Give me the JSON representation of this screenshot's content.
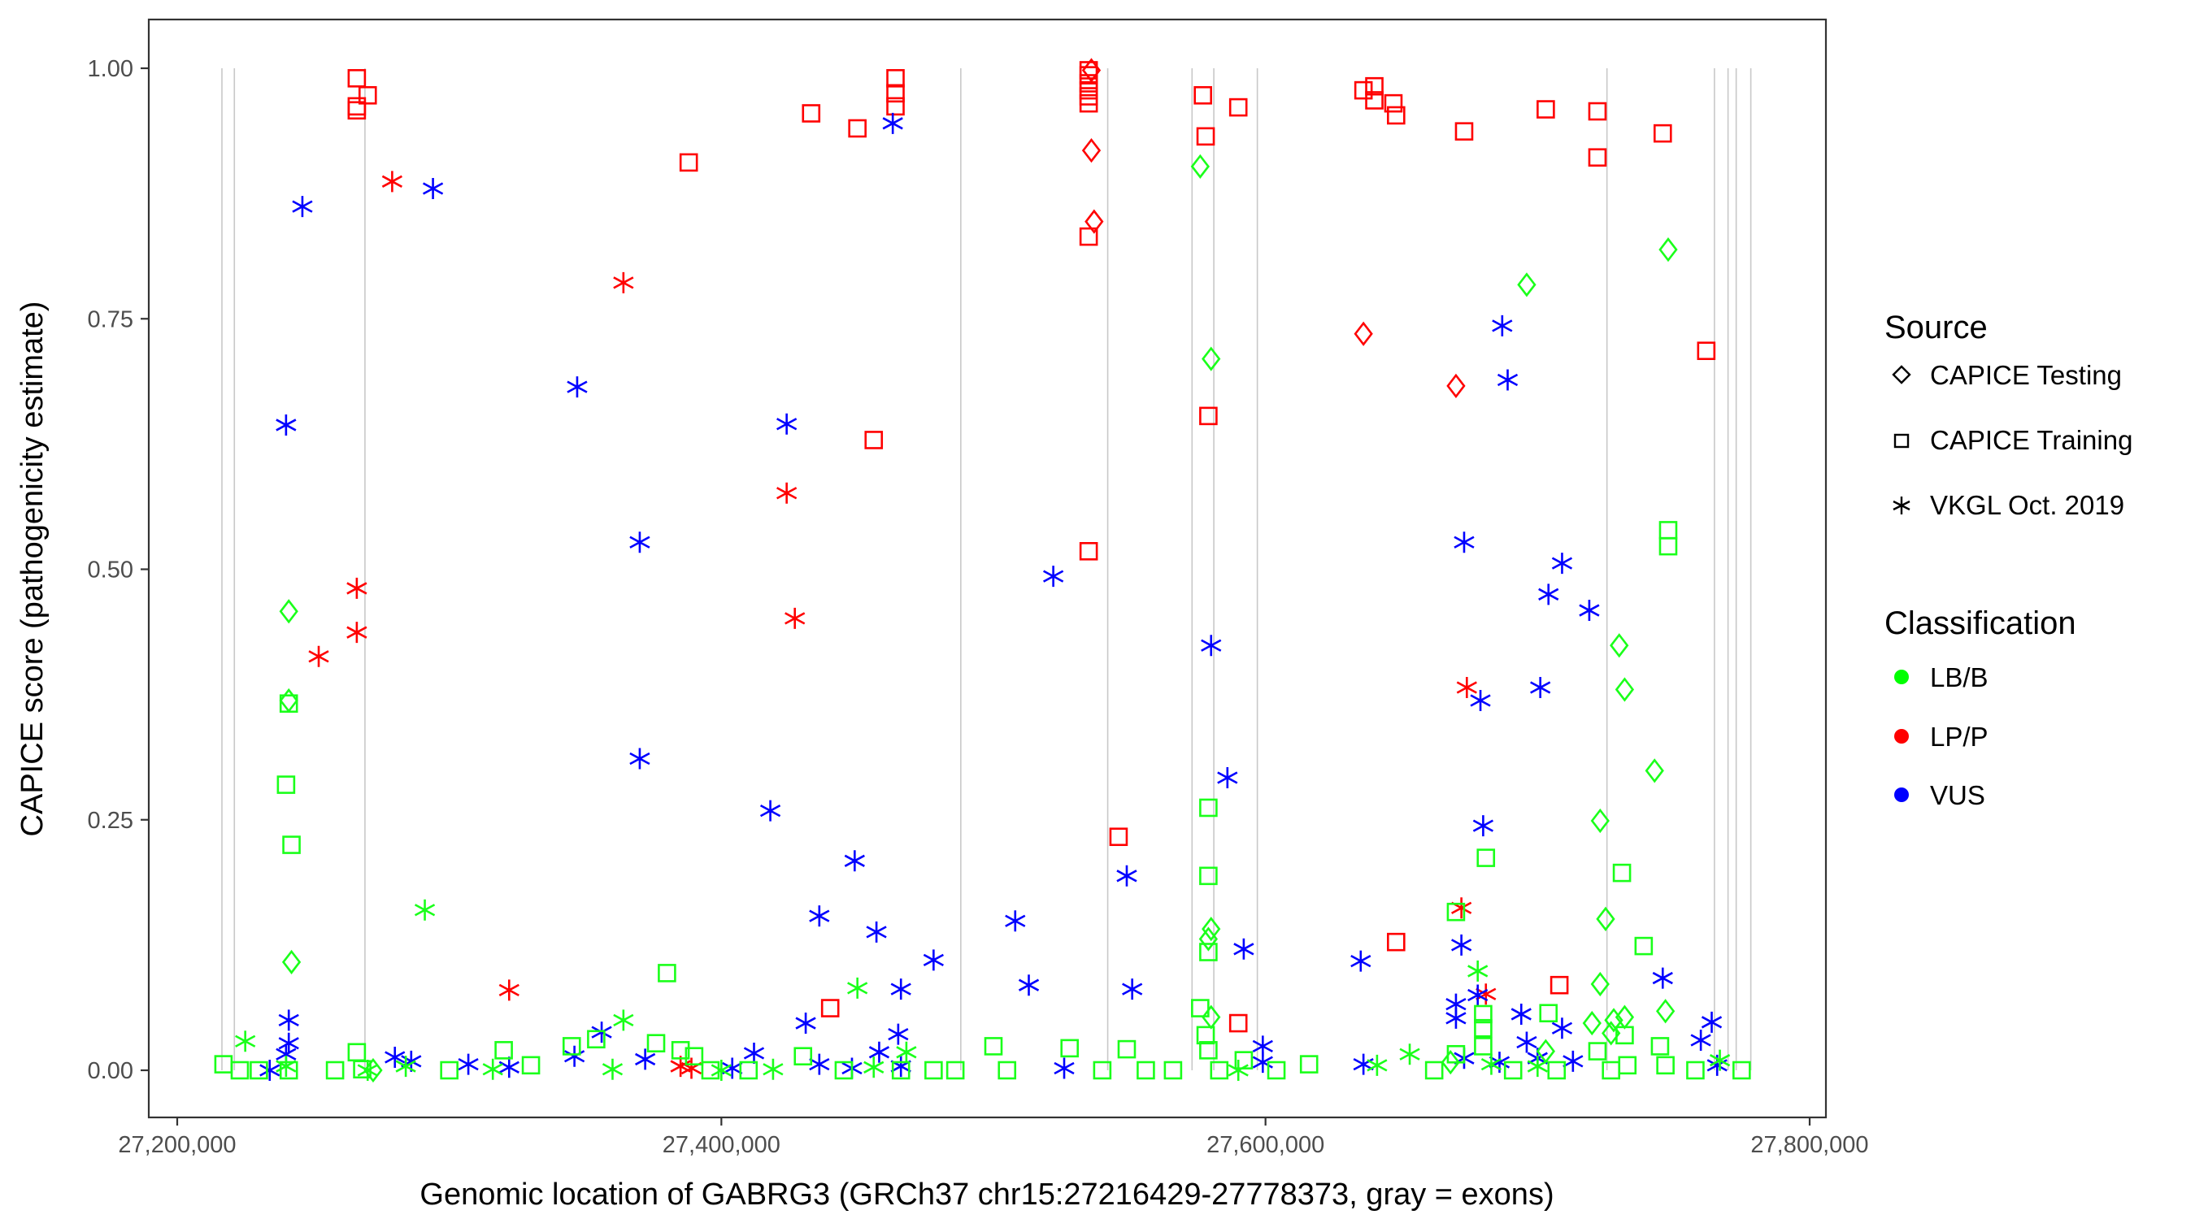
{
  "chart_data": {
    "type": "scatter",
    "xlabel": "Genomic location of GABRG3 (GRCh37 chr15:27216429-27778373, gray = exons)",
    "ylabel": "CAPICE score (pathogenicity estimate)",
    "xlim": [
      27188000,
      27803000
    ],
    "ylim": [
      -0.05,
      1.05
    ],
    "x_ticks": [
      27200000,
      27400000,
      27600000,
      27800000
    ],
    "x_tick_labels": [
      "27,200,000",
      "27,400,000",
      "27,600,000",
      "27,800,000"
    ],
    "y_ticks": [
      0,
      0.25,
      0.5,
      0.75,
      1.0
    ],
    "y_tick_labels": [
      "0.00",
      "0.25",
      "0.50",
      "0.75",
      "1.00"
    ],
    "grid": false,
    "exons": [
      27216429,
      27221000,
      27269000,
      27488000,
      27542000,
      27573000,
      27581000,
      27597000,
      27725500,
      27765000,
      27770000,
      27773000,
      27778373
    ],
    "legend": {
      "placement": "right",
      "source": {
        "title": "Source",
        "items": [
          {
            "label": "CAPICE Testing",
            "shape": "diamond"
          },
          {
            "label": "CAPICE Training",
            "shape": "square"
          },
          {
            "label": "VKGL Oct. 2019",
            "shape": "asterisk"
          }
        ]
      },
      "classification": {
        "title": "Classification",
        "items": [
          {
            "label": "LB/B",
            "color": "#00ff00"
          },
          {
            "label": "LP/P",
            "color": "#ff0000"
          },
          {
            "label": "VUS",
            "color": "#0000ff"
          }
        ]
      }
    },
    "colors": {
      "LB/B": "#1aff1a",
      "LP/P": "#ff0000",
      "VUS": "#0000ff"
    },
    "series": [
      {
        "name": "LP/P CAPICE Training",
        "classification": "LP/P",
        "source": "CAPICE Training",
        "points": [
          [
            27266000,
            0.99
          ],
          [
            27266000,
            0.962
          ],
          [
            27266000,
            0.958
          ],
          [
            27270000,
            0.973
          ],
          [
            27388000,
            0.906
          ],
          [
            27433000,
            0.955
          ],
          [
            27450000,
            0.94
          ],
          [
            27456000,
            0.629
          ],
          [
            27464000,
            0.99
          ],
          [
            27464000,
            0.975
          ],
          [
            27464000,
            0.962
          ],
          [
            27535000,
            0.998
          ],
          [
            27535000,
            0.993
          ],
          [
            27535000,
            0.985
          ],
          [
            27535000,
            0.978
          ],
          [
            27535000,
            0.972
          ],
          [
            27535000,
            0.965
          ],
          [
            27535000,
            0.832
          ],
          [
            27535000,
            0.518
          ],
          [
            27546000,
            0.233
          ],
          [
            27577000,
            0.973
          ],
          [
            27578000,
            0.932
          ],
          [
            27579000,
            0.653
          ],
          [
            27590000,
            0.961
          ],
          [
            27590000,
            0.047
          ],
          [
            27636000,
            0.978
          ],
          [
            27640000,
            0.982
          ],
          [
            27640000,
            0.968
          ],
          [
            27647000,
            0.965
          ],
          [
            27648000,
            0.953
          ],
          [
            27648000,
            0.128
          ],
          [
            27673000,
            0.937
          ],
          [
            27703000,
            0.959
          ],
          [
            27722000,
            0.957
          ],
          [
            27722000,
            0.911
          ],
          [
            27708000,
            0.085
          ],
          [
            27746000,
            0.935
          ],
          [
            27762000,
            0.718
          ],
          [
            27440000,
            0.062
          ]
        ]
      },
      {
        "name": "LP/P CAPICE Testing",
        "classification": "LP/P",
        "source": "CAPICE Testing",
        "points": [
          [
            27536000,
            0.998
          ],
          [
            27536000,
            0.918
          ],
          [
            27537000,
            0.847
          ],
          [
            27636000,
            0.735
          ],
          [
            27670000,
            0.683
          ]
        ]
      },
      {
        "name": "LP/P VKGL Oct. 2019",
        "classification": "LP/P",
        "source": "VKGL Oct. 2019",
        "points": [
          [
            27279000,
            0.887
          ],
          [
            27364000,
            0.786
          ],
          [
            27266000,
            0.481
          ],
          [
            27266000,
            0.437
          ],
          [
            27252000,
            0.413
          ],
          [
            27424000,
            0.576
          ],
          [
            27427000,
            0.451
          ],
          [
            27322000,
            0.08
          ],
          [
            27385000,
            0.004
          ],
          [
            27389000,
            0.002
          ],
          [
            27672000,
            0.162
          ],
          [
            27674000,
            0.382
          ],
          [
            27681000,
            0.076
          ]
        ]
      },
      {
        "name": "VUS VKGL Oct. 2019",
        "classification": "VUS",
        "source": "VKGL Oct. 2019",
        "points": [
          [
            27246000,
            0.862
          ],
          [
            27294000,
            0.88
          ],
          [
            27240000,
            0.644
          ],
          [
            27347000,
            0.682
          ],
          [
            27370000,
            0.527
          ],
          [
            27370000,
            0.311
          ],
          [
            27424000,
            0.645
          ],
          [
            27418000,
            0.259
          ],
          [
            27463000,
            0.945
          ],
          [
            27449000,
            0.209
          ],
          [
            27436000,
            0.154
          ],
          [
            27457000,
            0.138
          ],
          [
            27478000,
            0.11
          ],
          [
            27508000,
            0.149
          ],
          [
            27513000,
            0.085
          ],
          [
            27522000,
            0.493
          ],
          [
            27549000,
            0.194
          ],
          [
            27551000,
            0.081
          ],
          [
            27580000,
            0.424
          ],
          [
            27586000,
            0.292
          ],
          [
            27592000,
            0.121
          ],
          [
            27635000,
            0.109
          ],
          [
            27673000,
            0.527
          ],
          [
            27679000,
            0.369
          ],
          [
            27680000,
            0.244
          ],
          [
            27687000,
            0.743
          ],
          [
            27689000,
            0.689
          ],
          [
            27701000,
            0.382
          ],
          [
            27704000,
            0.475
          ],
          [
            27709000,
            0.506
          ],
          [
            27719000,
            0.459
          ],
          [
            27746000,
            0.092
          ],
          [
            27672000,
            0.125
          ],
          [
            27670000,
            0.066
          ],
          [
            27670000,
            0.052
          ],
          [
            27678000,
            0.075
          ],
          [
            27694000,
            0.056
          ],
          [
            27709000,
            0.042
          ],
          [
            27241000,
            0.05
          ],
          [
            27241000,
            0.027
          ],
          [
            27240000,
            0.016
          ],
          [
            27280000,
            0.013
          ],
          [
            27286000,
            0.009
          ],
          [
            27307000,
            0.006
          ],
          [
            27322000,
            0.003
          ],
          [
            27346000,
            0.014
          ],
          [
            27356000,
            0.038
          ],
          [
            27372000,
            0.011
          ],
          [
            27404000,
            0.002
          ],
          [
            27412000,
            0.017
          ],
          [
            27431000,
            0.047
          ],
          [
            27436000,
            0.006
          ],
          [
            27448000,
            0.002
          ],
          [
            27458000,
            0.018
          ],
          [
            27465000,
            0.036
          ],
          [
            27466000,
            0.081
          ],
          [
            27466000,
            0.004
          ],
          [
            27526000,
            0.002
          ],
          [
            27599000,
            0.024
          ],
          [
            27599000,
            0.008
          ],
          [
            27636000,
            0.006
          ],
          [
            27673000,
            0.012
          ],
          [
            27686000,
            0.008
          ],
          [
            27696000,
            0.028
          ],
          [
            27700000,
            0.012
          ],
          [
            27713000,
            0.009
          ],
          [
            27760000,
            0.03
          ],
          [
            27764000,
            0.048
          ],
          [
            27766000,
            0.005
          ],
          [
            27234000,
            0.0
          ]
        ]
      },
      {
        "name": "LB/B CAPICE Training",
        "classification": "LB/B",
        "source": "CAPICE Training",
        "points": [
          [
            27241000,
            0.366
          ],
          [
            27240000,
            0.285
          ],
          [
            27242000,
            0.225
          ],
          [
            27380000,
            0.097
          ],
          [
            27576000,
            0.062
          ],
          [
            27579000,
            0.262
          ],
          [
            27579000,
            0.194
          ],
          [
            27579000,
            0.118
          ],
          [
            27578000,
            0.035
          ],
          [
            27579000,
            0.02
          ],
          [
            27670000,
            0.158
          ],
          [
            27681000,
            0.212
          ],
          [
            27680000,
            0.056
          ],
          [
            27680000,
            0.042
          ],
          [
            27680000,
            0.024
          ],
          [
            27748000,
            0.539
          ],
          [
            27748000,
            0.523
          ],
          [
            27739000,
            0.124
          ],
          [
            27731000,
            0.197
          ],
          [
            27745000,
            0.024
          ],
          [
            27732000,
            0.035
          ],
          [
            27500000,
            0.024
          ],
          [
            27528000,
            0.022
          ],
          [
            27549000,
            0.021
          ],
          [
            27616000,
            0.006
          ],
          [
            27704000,
            0.057
          ],
          [
            27266000,
            0.018
          ],
          [
            27217000,
            0.006
          ],
          [
            27223000,
            0.0
          ],
          [
            27230000,
            0.0
          ],
          [
            27241000,
            0.0
          ],
          [
            27258000,
            0.0
          ],
          [
            27268000,
            0.001
          ],
          [
            27300000,
            0.0
          ],
          [
            27320000,
            0.02
          ],
          [
            27330000,
            0.005
          ],
          [
            27345000,
            0.024
          ],
          [
            27354000,
            0.031
          ],
          [
            27376000,
            0.027
          ],
          [
            27385000,
            0.02
          ],
          [
            27390000,
            0.014
          ],
          [
            27396000,
            0.0
          ],
          [
            27410000,
            0.0
          ],
          [
            27430000,
            0.014
          ],
          [
            27445000,
            0.0
          ],
          [
            27466000,
            0.0
          ],
          [
            27478000,
            0.0
          ],
          [
            27486000,
            0.0
          ],
          [
            27505000,
            0.0
          ],
          [
            27540000,
            0.0
          ],
          [
            27556000,
            0.0
          ],
          [
            27566000,
            0.0
          ],
          [
            27583000,
            0.0
          ],
          [
            27592000,
            0.01
          ],
          [
            27604000,
            0.0
          ],
          [
            27662000,
            0.0
          ],
          [
            27670000,
            0.016
          ],
          [
            27691000,
            0.0
          ],
          [
            27707000,
            0.0
          ],
          [
            27722000,
            0.019
          ],
          [
            27727000,
            0.0
          ],
          [
            27733000,
            0.005
          ],
          [
            27747000,
            0.005
          ],
          [
            27758000,
            0.0
          ],
          [
            27775000,
            0.0
          ]
        ]
      },
      {
        "name": "LB/B CAPICE Testing",
        "classification": "LB/B",
        "source": "CAPICE Testing",
        "points": [
          [
            27241000,
            0.458
          ],
          [
            27241000,
            0.369
          ],
          [
            27242000,
            0.108
          ],
          [
            27576000,
            0.902
          ],
          [
            27580000,
            0.71
          ],
          [
            27580000,
            0.141
          ],
          [
            27579000,
            0.131
          ],
          [
            27580000,
            0.053
          ],
          [
            27696000,
            0.784
          ],
          [
            27748000,
            0.819
          ],
          [
            27730000,
            0.424
          ],
          [
            27732000,
            0.38
          ],
          [
            27743000,
            0.299
          ],
          [
            27723000,
            0.249
          ],
          [
            27725000,
            0.151
          ],
          [
            27723000,
            0.086
          ],
          [
            27747000,
            0.059
          ],
          [
            27720000,
            0.047
          ],
          [
            27728000,
            0.05
          ],
          [
            27732000,
            0.053
          ],
          [
            27727000,
            0.037
          ],
          [
            27703000,
            0.019
          ],
          [
            27668000,
            0.008
          ],
          [
            27272000,
            0.0
          ]
        ]
      },
      {
        "name": "LB/B VKGL Oct. 2019",
        "classification": "LB/B",
        "source": "VKGL Oct. 2019",
        "points": [
          [
            27225000,
            0.029
          ],
          [
            27291000,
            0.16
          ],
          [
            27364000,
            0.05
          ],
          [
            27450000,
            0.082
          ],
          [
            27678000,
            0.099
          ],
          [
            27653000,
            0.016
          ],
          [
            27240000,
            0.004
          ],
          [
            27270000,
            0.0
          ],
          [
            27284000,
            0.004
          ],
          [
            27316000,
            0.001
          ],
          [
            27360000,
            0.001
          ],
          [
            27400000,
            0.0
          ],
          [
            27419000,
            0.001
          ],
          [
            27456000,
            0.003
          ],
          [
            27468000,
            0.018
          ],
          [
            27590000,
            0.0
          ],
          [
            27641000,
            0.005
          ],
          [
            27683000,
            0.006
          ],
          [
            27700000,
            0.004
          ],
          [
            27767000,
            0.01
          ]
        ]
      }
    ]
  }
}
